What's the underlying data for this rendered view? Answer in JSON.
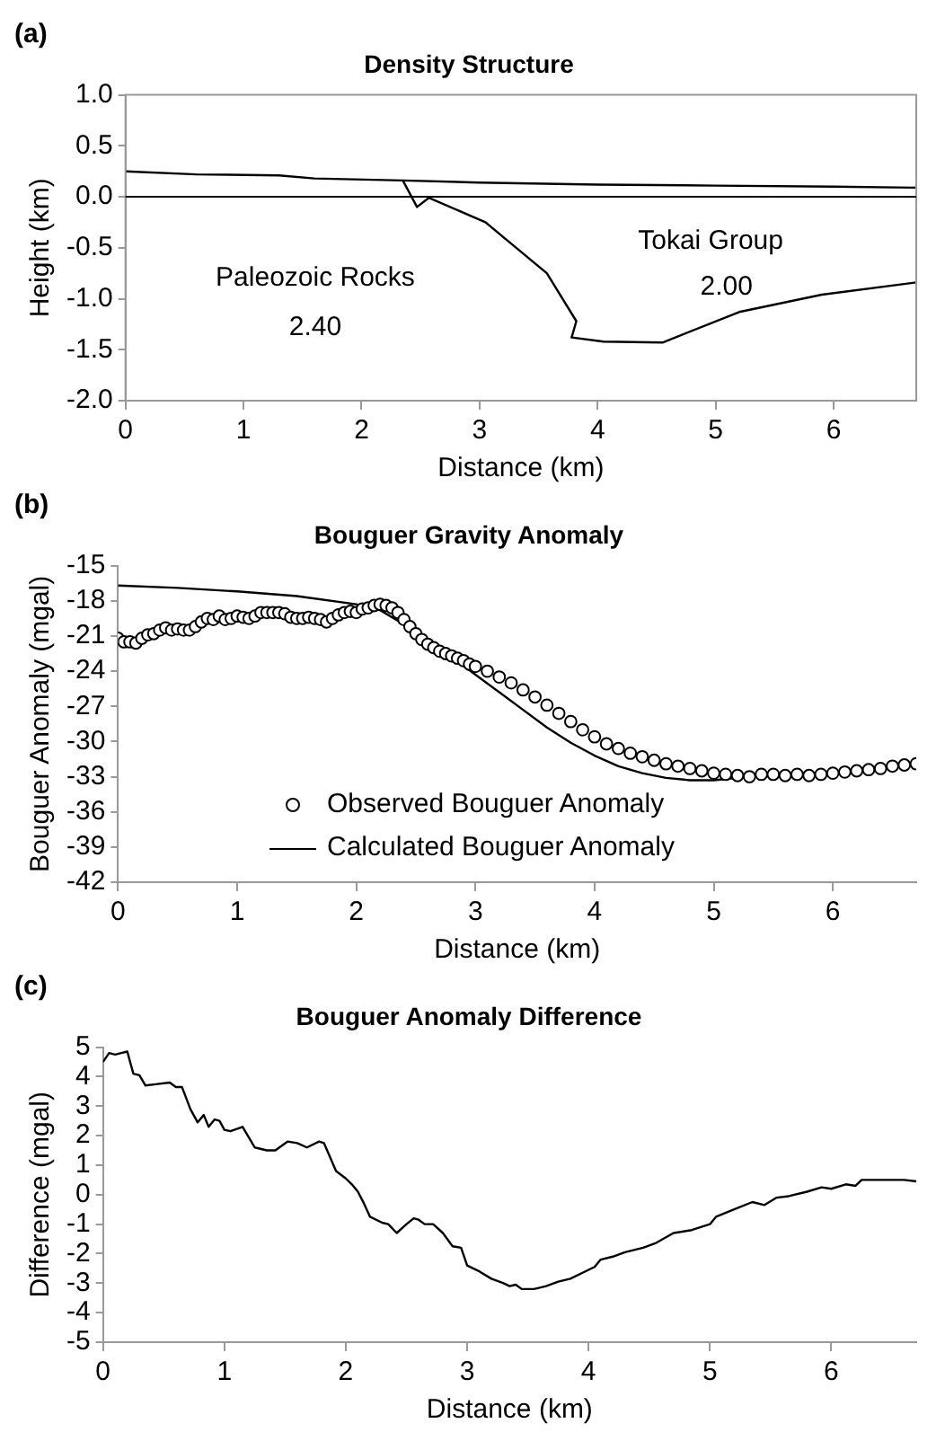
{
  "chart_data": [
    {
      "type": "line",
      "title": "Density Structure",
      "xlabel": "Distance (km)",
      "ylabel": "Height (km)",
      "xlim": [
        0,
        6.7
      ],
      "xticks": [
        0,
        1,
        2,
        3,
        4,
        5,
        6
      ],
      "ylim": [
        -2,
        1
      ],
      "yticks": [
        {
          "value": 1,
          "label": "1.0"
        },
        {
          "value": 0.5,
          "label": "0.5"
        },
        {
          "value": 0,
          "label": "0.0"
        },
        {
          "value": -0.5,
          "label": "-0.5"
        },
        {
          "value": -1,
          "label": "-1.0"
        },
        {
          "value": -1.5,
          "label": "-1.5"
        },
        {
          "value": -2,
          "label": "-2.0"
        }
      ],
      "ref_lines": [
        {
          "axis": "y",
          "value": 0,
          "color": "#000000"
        }
      ],
      "marker": "none",
      "annotations": [
        "(a)",
        "Paleozoic Rocks",
        "2.40",
        "Tokai Group",
        "2.00"
      ],
      "series": [
        {
          "color": "#000000",
          "x": [
            0,
            0.6,
            1.3,
            1.6,
            2.35,
            3,
            4,
            5,
            6,
            6.7
          ],
          "values": [
            0.25,
            0.22,
            0.21,
            0.18,
            0.16,
            0.14,
            0.12,
            0.11,
            0.1,
            0.09
          ]
        },
        {
          "color": "#000000",
          "x": [
            2.35,
            2.47,
            2.57,
            3.05,
            3.57,
            3.82,
            3.78,
            4.05,
            4.55,
            5.2,
            5.9,
            6.7
          ],
          "values": [
            0.16,
            -0.1,
            -0.01,
            -0.25,
            -0.75,
            -1.22,
            -1.38,
            -1.42,
            -1.43,
            -1.13,
            -0.96,
            -0.84
          ]
        }
      ]
    },
    {
      "type": "line",
      "title": "Bouguer Gravity Anomaly",
      "xlabel": "Distance (km)",
      "ylabel": "Bouguer Anomaly (mgal)",
      "xlim": [
        0,
        6.7
      ],
      "xticks": [
        0,
        1,
        2,
        3,
        4,
        5,
        6
      ],
      "ylim": [
        -42,
        -15
      ],
      "yticks": [
        -15,
        -18,
        -21,
        -24,
        -27,
        -30,
        -33,
        -36,
        -39,
        -42
      ],
      "legend": "bottom left",
      "annotations": [
        "(b)"
      ],
      "series": [
        {
          "type": "scatter",
          "name": "Observed Bouguer Anomaly",
          "color": "#000000",
          "marker": "circle",
          "x": [
            0,
            0.05,
            0.1,
            0.15,
            0.2,
            0.25,
            0.3,
            0.35,
            0.4,
            0.45,
            0.5,
            0.55,
            0.6,
            0.65,
            0.7,
            0.75,
            0.8,
            0.85,
            0.9,
            0.95,
            1,
            1.05,
            1.1,
            1.15,
            1.2,
            1.25,
            1.3,
            1.35,
            1.4,
            1.45,
            1.5,
            1.55,
            1.6,
            1.65,
            1.7,
            1.75,
            1.8,
            1.85,
            1.9,
            1.95,
            2,
            2.05,
            2.1,
            2.15,
            2.2,
            2.25,
            2.3,
            2.35,
            2.4,
            2.45,
            2.5,
            2.55,
            2.6,
            2.65,
            2.7,
            2.75,
            2.8,
            2.85,
            2.9,
            2.95,
            3,
            3.1,
            3.2,
            3.3,
            3.4,
            3.5,
            3.6,
            3.7,
            3.8,
            3.9,
            4,
            4.1,
            4.2,
            4.3,
            4.4,
            4.5,
            4.6,
            4.7,
            4.8,
            4.9,
            5,
            5.1,
            5.2,
            5.3,
            5.4,
            5.5,
            5.6,
            5.7,
            5.8,
            5.9,
            6,
            6.1,
            6.2,
            6.3,
            6.4,
            6.5,
            6.6,
            6.7
          ],
          "values": [
            -21.2,
            -21.5,
            -21.5,
            -21.6,
            -21.2,
            -20.9,
            -20.8,
            -20.5,
            -20.3,
            -20.5,
            -20.4,
            -20.5,
            -20.5,
            -20.2,
            -19.8,
            -19.5,
            -19.6,
            -19.3,
            -19.6,
            -19.5,
            -19.3,
            -19.4,
            -19.5,
            -19.3,
            -19,
            -19,
            -19,
            -19,
            -19.1,
            -19.4,
            -19.5,
            -19.5,
            -19.4,
            -19.5,
            -19.6,
            -19.8,
            -19.5,
            -19.2,
            -19,
            -18.9,
            -19,
            -18.7,
            -18.6,
            -18.4,
            -18.3,
            -18.4,
            -18.6,
            -19,
            -19.6,
            -20.2,
            -20.8,
            -21.3,
            -21.7,
            -22,
            -22.3,
            -22.5,
            -22.7,
            -22.9,
            -23.1,
            -23.4,
            -23.6,
            -24,
            -24.5,
            -25,
            -25.6,
            -26.2,
            -26.9,
            -27.6,
            -28.3,
            -29,
            -29.6,
            -30.2,
            -30.6,
            -31,
            -31.3,
            -31.6,
            -31.9,
            -32.1,
            -32.3,
            -32.5,
            -32.7,
            -32.8,
            -32.9,
            -33,
            -32.8,
            -32.8,
            -32.9,
            -32.8,
            -32.9,
            -32.8,
            -32.7,
            -32.6,
            -32.5,
            -32.4,
            -32.3,
            -32.1,
            -32,
            -31.9
          ]
        },
        {
          "type": "line",
          "name": "Calculated Bouguer Anomaly",
          "color": "#000000",
          "marker": "none",
          "x": [
            0,
            0.5,
            1,
            1.5,
            2,
            2.2,
            2.4,
            2.6,
            2.8,
            3,
            3.2,
            3.4,
            3.6,
            3.8,
            4,
            4.2,
            4.4,
            4.6,
            4.8,
            5,
            5.2,
            5.4,
            5.6,
            6,
            6.4,
            6.7
          ],
          "values": [
            -16.7,
            -16.9,
            -17.2,
            -17.6,
            -18.3,
            -18.8,
            -20,
            -21.7,
            -22.8,
            -24.3,
            -25.8,
            -27.3,
            -28.8,
            -30.1,
            -31.2,
            -32.1,
            -32.7,
            -33.1,
            -33.3,
            -33.3,
            -33.1,
            -32.9,
            -32.8,
            -32.6,
            -32.2,
            -31.8
          ]
        }
      ]
    },
    {
      "type": "line",
      "title": "Bouguer Anomaly Difference",
      "xlabel": "Distance (km)",
      "ylabel": "Difference (mgal)",
      "xlim": [
        0,
        6.7
      ],
      "xticks": [
        0,
        1,
        2,
        3,
        4,
        5,
        6
      ],
      "ylim": [
        -5,
        5
      ],
      "yticks": [
        5,
        4,
        3,
        2,
        1,
        0,
        -1,
        -2,
        -3,
        -4,
        -5
      ],
      "marker": "none",
      "annotations": [
        "(c)"
      ],
      "series": [
        {
          "color": "#000000",
          "x": [
            0,
            0.05,
            0.1,
            0.15,
            0.2,
            0.25,
            0.3,
            0.35,
            0.45,
            0.55,
            0.6,
            0.65,
            0.72,
            0.78,
            0.83,
            0.87,
            0.92,
            0.96,
            1,
            1.05,
            1.15,
            1.25,
            1.35,
            1.42,
            1.52,
            1.6,
            1.68,
            1.78,
            1.82,
            1.92,
            2,
            2.05,
            2.1,
            2.15,
            2.2,
            2.3,
            2.35,
            2.42,
            2.5,
            2.56,
            2.6,
            2.65,
            2.72,
            2.8,
            2.88,
            2.95,
            3,
            3.1,
            3.2,
            3.3,
            3.35,
            3.4,
            3.45,
            3.55,
            3.65,
            3.75,
            3.85,
            4,
            4.05,
            4.1,
            4.2,
            4.3,
            4.45,
            4.55,
            4.7,
            4.85,
            5,
            5.05,
            5.2,
            5.35,
            5.45,
            5.55,
            5.65,
            5.8,
            5.92,
            6,
            6.12,
            6.2,
            6.25,
            6.4,
            6.6,
            6.7
          ],
          "values": [
            4.5,
            4.8,
            4.75,
            4.8,
            4.85,
            4.1,
            4.05,
            3.7,
            3.75,
            3.8,
            3.65,
            3.65,
            2.9,
            2.45,
            2.7,
            2.3,
            2.55,
            2.5,
            2.2,
            2.15,
            2.3,
            1.6,
            1.5,
            1.5,
            1.8,
            1.75,
            1.6,
            1.8,
            1.75,
            0.8,
            0.55,
            0.35,
            0.1,
            -0.3,
            -0.75,
            -0.95,
            -1,
            -1.3,
            -1,
            -0.8,
            -0.85,
            -1,
            -1,
            -1.3,
            -1.75,
            -1.8,
            -2.4,
            -2.6,
            -2.85,
            -3,
            -3.1,
            -3.05,
            -3.2,
            -3.2,
            -3.1,
            -2.95,
            -2.85,
            -2.55,
            -2.45,
            -2.2,
            -2.1,
            -1.95,
            -1.8,
            -1.65,
            -1.3,
            -1.2,
            -1,
            -0.75,
            -0.5,
            -0.25,
            -0.35,
            -0.1,
            -0.05,
            0.1,
            0.25,
            0.2,
            0.35,
            0.3,
            0.5,
            0.5,
            0.5,
            0.45
          ]
        }
      ]
    }
  ]
}
